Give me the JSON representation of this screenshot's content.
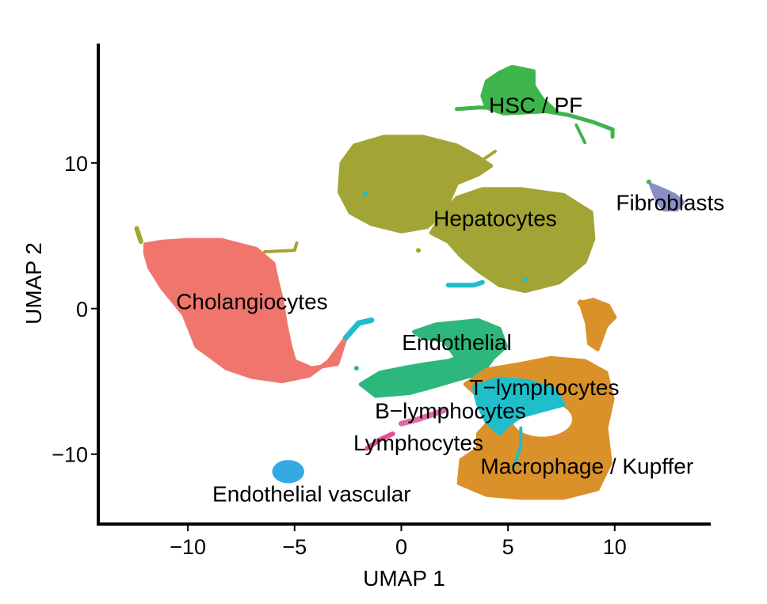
{
  "chart_data": {
    "type": "scatter",
    "title": "",
    "xlabel": "UMAP 1",
    "ylabel": "UMAP 2",
    "xlim": [
      -14.2,
      14.5
    ],
    "ylim": [
      -14.8,
      18.2
    ],
    "xticks": [
      -10,
      -5,
      0,
      5,
      10
    ],
    "xtick_labels": [
      "−10",
      "−5",
      "0",
      "5",
      "10"
    ],
    "yticks": [
      -10,
      0,
      10
    ],
    "ytick_labels": [
      "−10",
      "0",
      "10"
    ],
    "grid": false,
    "legend": "none",
    "clusters": [
      {
        "name": "Cholangiocytes",
        "color": "#F0766D",
        "label_at": [
          -7.0,
          0.5
        ]
      },
      {
        "name": "Hepatocytes",
        "color": "#A2A535",
        "label_at": [
          4.4,
          6.2
        ]
      },
      {
        "name": "HSC / PF",
        "color": "#3EB54A",
        "label_at": [
          6.3,
          14.0
        ]
      },
      {
        "name": "Fibroblasts",
        "color": "#8B8EC5",
        "label_at": [
          12.6,
          7.3
        ]
      },
      {
        "name": "Endothelial",
        "color": "#2DB77C",
        "label_at": [
          2.6,
          -2.3
        ]
      },
      {
        "name": "T−lymphocytes",
        "color": "#1FBECB",
        "label_at": [
          6.7,
          -5.4
        ]
      },
      {
        "name": "B−lymphocytes",
        "color": "#E06BA8",
        "label_at": [
          2.3,
          -7.0
        ]
      },
      {
        "name": "Lymphocytes",
        "color": "#E4508F",
        "label_at": [
          0.8,
          -9.2
        ]
      },
      {
        "name": "Macrophage / Kupffer",
        "color": "#DA912A",
        "label_at": [
          8.7,
          -10.8
        ]
      },
      {
        "name": "Endothelial vascular",
        "color": "#35A9E2",
        "label_at": [
          -4.2,
          -12.7
        ]
      }
    ]
  }
}
